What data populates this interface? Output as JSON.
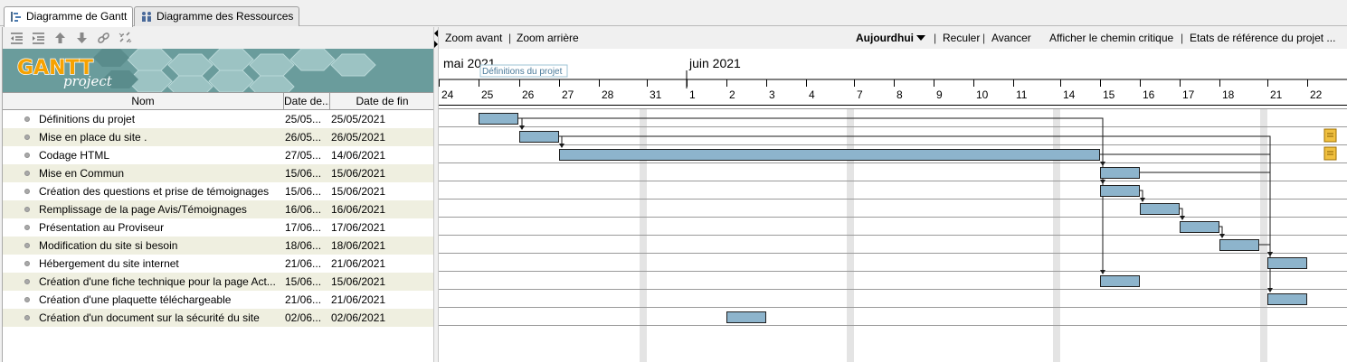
{
  "tabs": [
    {
      "label": "Diagramme de Gantt",
      "active": true,
      "icon": "gantt-icon"
    },
    {
      "label": "Diagramme des Ressources",
      "active": false,
      "icon": "resources-icon"
    }
  ],
  "left_toolbar": {
    "buttons": [
      "unindent-icon",
      "indent-icon",
      "move-up-icon",
      "move-down-icon",
      "link-icon",
      "unlink-icon"
    ]
  },
  "logo": {
    "text_main": "GANTT",
    "text_sub": "project"
  },
  "table": {
    "columns": [
      "Nom",
      "Date de...",
      "Date de fin"
    ],
    "rows": [
      {
        "name": "Définitions du projet",
        "start": "25/05...",
        "end": "25/05/2021"
      },
      {
        "name": "Mise en place du site .",
        "start": "26/05...",
        "end": "26/05/2021"
      },
      {
        "name": "Codage HTML",
        "start": "27/05...",
        "end": "14/06/2021"
      },
      {
        "name": "Mise en Commun",
        "start": "15/06...",
        "end": "15/06/2021"
      },
      {
        "name": "Création des questions et prise de témoignages",
        "start": "15/06...",
        "end": "15/06/2021"
      },
      {
        "name": "Remplissage de la page Avis/Témoignages",
        "start": "16/06...",
        "end": "16/06/2021"
      },
      {
        "name": "Présentation au Proviseur",
        "start": "17/06...",
        "end": "17/06/2021"
      },
      {
        "name": "Modification du site si besoin",
        "start": "18/06...",
        "end": "18/06/2021"
      },
      {
        "name": "Hébergement du site internet",
        "start": "21/06...",
        "end": "21/06/2021"
      },
      {
        "name": "Création d'une fiche technique pour la page Act...",
        "start": "15/06...",
        "end": "15/06/2021"
      },
      {
        "name": "Création d'une plaquette téléchargeable",
        "start": "21/06...",
        "end": "21/06/2021"
      },
      {
        "name": "Création d'un document sur la sécurité du site",
        "start": "02/06...",
        "end": "02/06/2021"
      }
    ]
  },
  "right_toolbar": {
    "zoom_in": "Zoom avant",
    "zoom_out": "Zoom arrière",
    "today": "Aujourdhui",
    "back": "Reculer",
    "forward": "Avancer",
    "critical_path": "Afficher le chemin critique",
    "baselines": "Etats de référence du projet ..."
  },
  "timeline": {
    "months": [
      "mai 2021",
      "juin 2021"
    ],
    "days": [
      "24",
      "25",
      "26",
      "27",
      "28",
      "31",
      "1",
      "2",
      "3",
      "4",
      "7",
      "8",
      "9",
      "10",
      "11",
      "14",
      "15",
      "16",
      "17",
      "18",
      "21",
      "22"
    ],
    "tooltip": "Définitions du projet"
  },
  "colors": {
    "bar_fill": "#8db4cc",
    "bar_border": "#1f1f1f",
    "row_alt": "#efefe0",
    "weekend": "#e4e4e4",
    "note": "#f0c040"
  },
  "chart_data": {
    "type": "gantt",
    "tasks": [
      {
        "name": "Définitions du projet",
        "start": "2021-05-25",
        "end": "2021-05-25"
      },
      {
        "name": "Mise en place du site .",
        "start": "2021-05-26",
        "end": "2021-05-26"
      },
      {
        "name": "Codage HTML",
        "start": "2021-05-27",
        "end": "2021-06-14"
      },
      {
        "name": "Mise en Commun",
        "start": "2021-06-15",
        "end": "2021-06-15"
      },
      {
        "name": "Création des questions et prise de témoignages",
        "start": "2021-06-15",
        "end": "2021-06-15"
      },
      {
        "name": "Remplissage de la page Avis/Témoignages",
        "start": "2021-06-16",
        "end": "2021-06-16"
      },
      {
        "name": "Présentation au Proviseur",
        "start": "2021-06-17",
        "end": "2021-06-17"
      },
      {
        "name": "Modification du site si besoin",
        "start": "2021-06-18",
        "end": "2021-06-18"
      },
      {
        "name": "Hébergement du site internet",
        "start": "2021-06-21",
        "end": "2021-06-21"
      },
      {
        "name": "Création d'une fiche technique pour la page Act...",
        "start": "2021-06-15",
        "end": "2021-06-15"
      },
      {
        "name": "Création d'une plaquette téléchargeable",
        "start": "2021-06-21",
        "end": "2021-06-21"
      },
      {
        "name": "Création d'un document sur la sécurité du site",
        "start": "2021-06-02",
        "end": "2021-06-02"
      }
    ],
    "dependencies": [
      [
        0,
        1
      ],
      [
        1,
        2
      ],
      [
        2,
        3
      ],
      [
        2,
        4
      ],
      [
        4,
        5
      ],
      [
        5,
        6
      ],
      [
        6,
        7
      ],
      [
        7,
        8
      ],
      [
        0,
        9
      ],
      [
        1,
        10
      ],
      [
        3,
        8
      ],
      [
        2,
        8
      ]
    ],
    "notes_on_rows": [
      1,
      2
    ]
  }
}
